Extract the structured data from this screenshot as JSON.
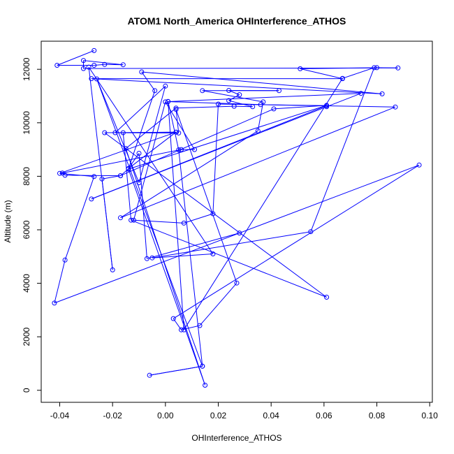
{
  "chart_data": {
    "type": "line",
    "title": "ATOM1 North_America OHInterference_ATHOS",
    "xlabel": "OHInterference_ATHOS",
    "ylabel": "Altitude (m)",
    "xlim": [
      -0.047,
      0.101
    ],
    "ylim": [
      -450,
      13050
    ],
    "grid": false,
    "line_color": "#0000ff",
    "marker": "open-circle",
    "x_ticks": [
      -0.04,
      -0.02,
      0.0,
      0.02,
      0.04,
      0.06,
      0.08,
      0.1
    ],
    "x_tick_labels": [
      "-0.04",
      "-0.02",
      "0.00",
      "0.02",
      "0.04",
      "0.06",
      "0.08",
      "0.10"
    ],
    "y_ticks": [
      0,
      2000,
      4000,
      6000,
      8000,
      10000,
      12000
    ],
    "y_tick_labels": [
      "0",
      "2000",
      "4000",
      "6000",
      "8000",
      "10000",
      "12000"
    ],
    "series": [
      {
        "points": [
          [
            -0.027,
            12700
          ],
          [
            -0.041,
            12150
          ],
          [
            -0.027,
            12150
          ],
          [
            -0.023,
            12180
          ],
          [
            -0.016,
            12170
          ],
          [
            -0.031,
            12330
          ],
          [
            -0.031,
            12030
          ],
          [
            0.088,
            12050
          ],
          [
            0.08,
            12060
          ],
          [
            0.051,
            12020
          ],
          [
            0.067,
            11650
          ],
          [
            -0.028,
            11650
          ],
          [
            0.082,
            11080
          ],
          [
            -0.009,
            11900
          ],
          [
            -0.004,
            11200
          ],
          [
            -0.014,
            8280
          ],
          [
            -0.017,
            8020
          ],
          [
            -0.038,
            8040
          ],
          [
            -0.039,
            8120
          ],
          [
            0.006,
            9000
          ],
          [
            0.011,
            9000
          ],
          [
            0.0,
            10780
          ],
          [
            -0.012,
            6360
          ],
          [
            0.007,
            6250
          ],
          [
            0.018,
            6600
          ],
          [
            0.02,
            10700
          ],
          [
            0.061,
            10640
          ],
          [
            -0.028,
            7150
          ],
          [
            0.061,
            10600
          ],
          [
            0.074,
            11100
          ],
          [
            0.001,
            10790
          ],
          [
            0.036,
            10680
          ],
          [
            0.087,
            10590
          ],
          [
            -0.017,
            6450
          ],
          [
            0.035,
            9700
          ],
          [
            0.037,
            10780
          ],
          [
            0.014,
            11200
          ],
          [
            0.043,
            11200
          ],
          [
            0.024,
            11210
          ],
          [
            0.028,
            11050
          ],
          [
            0.024,
            10830
          ],
          [
            0.033,
            10600
          ],
          [
            0.026,
            10620
          ],
          [
            0.004,
            10550
          ],
          [
            -0.015,
            9040
          ],
          [
            0.015,
            190
          ],
          [
            -0.014,
            8270
          ],
          [
            0.061,
            10650
          ],
          [
            0.041,
            10520
          ],
          [
            -0.017,
            8020
          ],
          [
            -0.024,
            7900
          ],
          [
            -0.02,
            4500
          ],
          [
            -0.029,
            12080
          ],
          [
            0.018,
            5100
          ],
          [
            -0.005,
            4950
          ],
          [
            0.055,
            5930
          ],
          [
            0.079,
            12060
          ],
          [
            0.067,
            11660
          ],
          [
            0.007,
            2260
          ],
          [
            0.001,
            10800
          ],
          [
            0.005,
            8990
          ],
          [
            0.014,
            900
          ],
          [
            -0.006,
            560
          ],
          [
            0.014,
            900
          ],
          [
            -0.026,
            11640
          ],
          [
            -0.01,
            7760
          ],
          [
            0.0,
            11370
          ],
          [
            -0.019,
            9630
          ],
          [
            0.005,
            9620
          ],
          [
            0.004,
            10500
          ],
          [
            0.027,
            4010
          ],
          [
            0.013,
            2420
          ],
          [
            0.006,
            2260
          ],
          [
            0.003,
            2680
          ],
          [
            0.096,
            8420
          ],
          [
            -0.042,
            3260
          ],
          [
            -0.038,
            4870
          ],
          [
            -0.027,
            7990
          ],
          [
            -0.04,
            8110
          ],
          [
            0.004,
            9650
          ],
          [
            -0.023,
            9630
          ],
          [
            0.061,
            3480
          ],
          [
            -0.013,
            6360
          ],
          [
            -0.016,
            9630
          ],
          [
            0.004,
            9650
          ],
          [
            -0.014,
            8290
          ],
          [
            -0.01,
            8860
          ],
          [
            -0.007,
            4920
          ],
          [
            0.028,
            5880
          ]
        ]
      }
    ]
  }
}
